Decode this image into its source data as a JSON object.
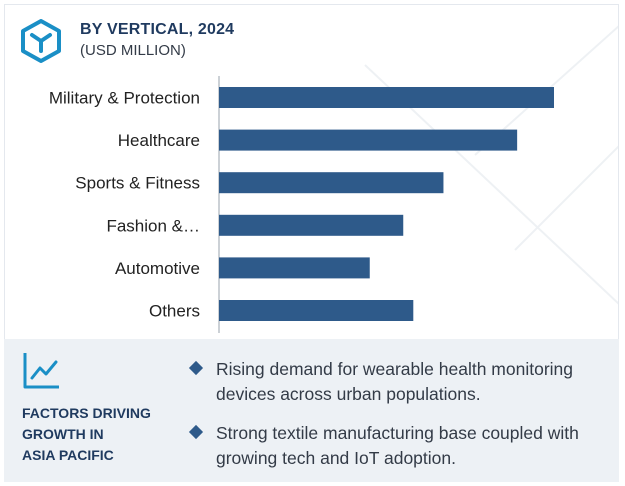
{
  "header": {
    "icon": "hexagon-logo-icon",
    "title": "BY VERTICAL, 2024",
    "subtitle": "(USD MILLION)"
  },
  "colors": {
    "bar": "#2e5a8a",
    "accent": "#1a8fc6",
    "title": "#1f3a5f",
    "panel": "#edf1f5"
  },
  "chart_data": {
    "type": "bar",
    "orientation": "horizontal",
    "title": "BY VERTICAL, 2024",
    "subtitle": "(USD MILLION)",
    "categories": [
      "Military & Protection",
      "Healthcare",
      "Sports & Fitness",
      "Fashion &…",
      "Automotive",
      "Others"
    ],
    "values": [
      100,
      89,
      67,
      55,
      45,
      58
    ],
    "xlim": [
      0,
      100
    ],
    "grid": false,
    "legend": "none"
  },
  "factors": {
    "icon": "trend-line-icon",
    "title": "FACTORS DRIVING\nGROWTH IN\nASIA PACIFIC",
    "bullets": [
      "Rising demand for wearable health monitoring devices across urban populations.",
      "Strong textile manufacturing base coupled with growing tech and IoT adoption."
    ]
  }
}
